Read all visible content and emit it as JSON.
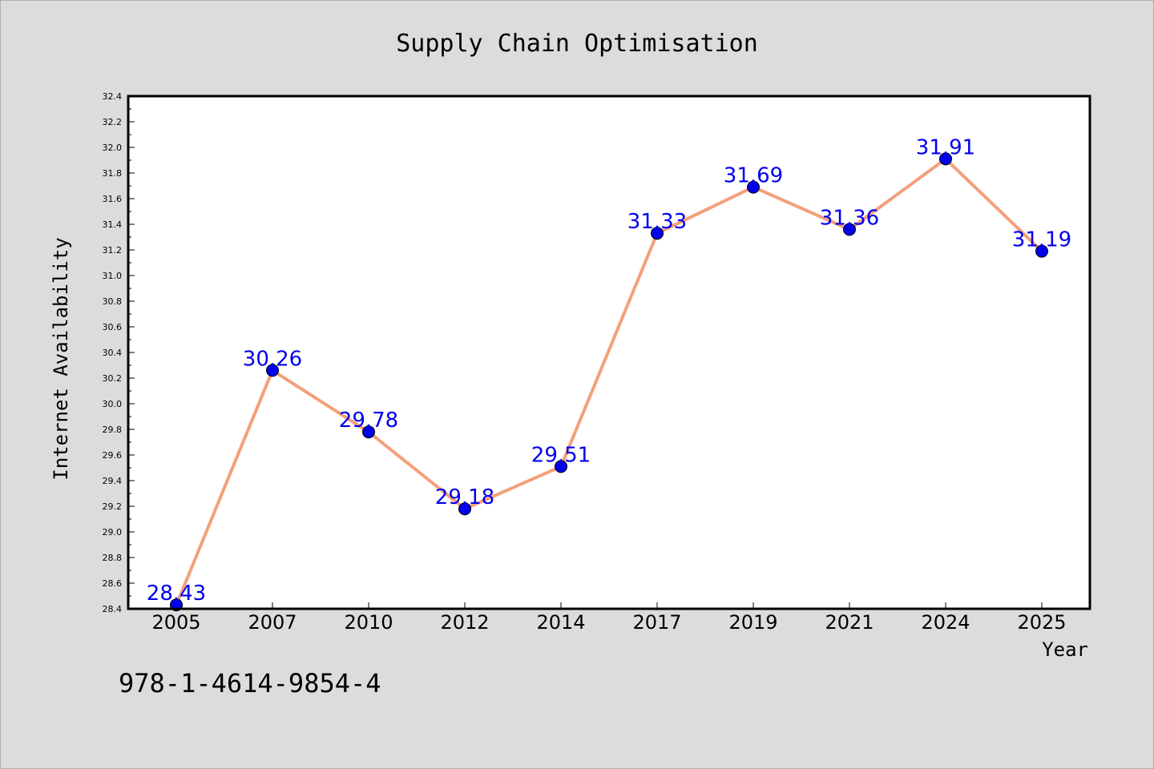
{
  "chart_data": {
    "type": "line",
    "title": "Supply Chain Optimisation",
    "xlabel": "Year",
    "ylabel": "Internet Availability",
    "categories": [
      "2005",
      "2007",
      "2010",
      "2012",
      "2014",
      "2017",
      "2019",
      "2021",
      "2024",
      "2025"
    ],
    "values": [
      28.43,
      30.26,
      29.78,
      29.18,
      29.51,
      31.33,
      31.69,
      31.36,
      31.91,
      31.19
    ],
    "data_labels": [
      "28.43",
      "30.26",
      "29.78",
      "29.18",
      "29.51",
      "31.33",
      "31.69",
      "31.36",
      "31.91",
      "31.19"
    ],
    "ylim": [
      28.4,
      32.4
    ],
    "yticks": [
      "28.4",
      "28.6",
      "28.8",
      "29.0",
      "29.2",
      "29.4",
      "29.6",
      "29.8",
      "30.0",
      "30.2",
      "30.4",
      "30.6",
      "30.8",
      "31.0",
      "31.2",
      "31.4",
      "31.6",
      "31.8",
      "32.0",
      "32.2",
      "32.4"
    ],
    "grid": false,
    "legend": "none",
    "line_color": "#f4a07a",
    "marker_color": "#0000ee",
    "label_color": "#0000ee"
  },
  "footer": {
    "isbn": "978-1-4614-9854-4"
  }
}
